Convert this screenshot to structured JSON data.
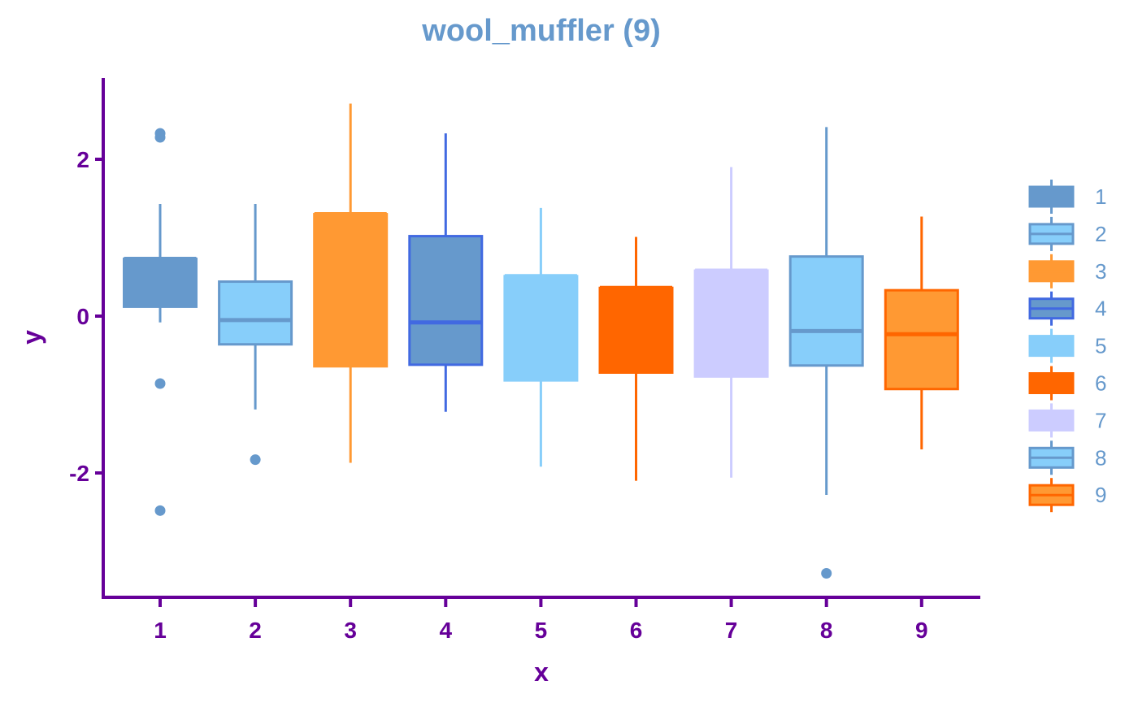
{
  "chart_data": {
    "type": "boxplot",
    "title": "wool_muffler (9)",
    "xlabel": "x",
    "ylabel": "y",
    "ylim": [
      -3.6,
      3.0
    ],
    "yticks": [
      -2,
      0,
      2
    ],
    "ytick_labels": [
      "-2",
      "0",
      "2"
    ],
    "grid": false,
    "legend_position": "right",
    "categories": [
      "1",
      "2",
      "3",
      "4",
      "5",
      "6",
      "7",
      "8",
      "9"
    ],
    "boxes": [
      {
        "name": "1",
        "whisker_low": -0.08,
        "q1": 0.12,
        "median": 0.73,
        "q3": 0.73,
        "whisker_high": 1.43,
        "outliers": [
          2.33,
          2.28,
          -0.86,
          -2.48
        ],
        "fill": "#6699cc",
        "stroke": "#6699cc",
        "median_color": "#6699cc"
      },
      {
        "name": "2",
        "whisker_low": -1.19,
        "q1": -0.36,
        "median": -0.05,
        "q3": 0.44,
        "whisker_high": 1.43,
        "outliers": [
          -1.83
        ],
        "fill": "#87cefa",
        "stroke": "#6699cc",
        "median_color": "#6699cc"
      },
      {
        "name": "3",
        "whisker_low": -1.87,
        "q1": -0.64,
        "median": 1.3,
        "q3": 1.3,
        "whisker_high": 2.71,
        "outliers": [],
        "fill": "#ff9933",
        "stroke": "#ff9933",
        "median_color": "#ff9933"
      },
      {
        "name": "4",
        "whisker_low": -1.22,
        "q1": -0.62,
        "median": -0.08,
        "q3": 1.02,
        "whisker_high": 2.33,
        "outliers": [],
        "fill": "#6699cc",
        "stroke": "#4169e1",
        "median_color": "#4169e1"
      },
      {
        "name": "5",
        "whisker_low": -1.92,
        "q1": -0.82,
        "median": 0.51,
        "q3": 0.51,
        "whisker_high": 1.38,
        "outliers": [],
        "fill": "#87cefa",
        "stroke": "#87cefa",
        "median_color": "#87cefa"
      },
      {
        "name": "6",
        "whisker_low": -2.1,
        "q1": -0.72,
        "median": 0.36,
        "q3": 0.36,
        "whisker_high": 1.01,
        "outliers": [],
        "fill": "#ff6600",
        "stroke": "#ff6600",
        "median_color": "#ff6600"
      },
      {
        "name": "7",
        "whisker_low": -2.06,
        "q1": -0.77,
        "median": 0.58,
        "q3": 0.58,
        "whisker_high": 1.9,
        "outliers": [],
        "fill": "#ccccff",
        "stroke": "#ccccff",
        "median_color": "#ccccff"
      },
      {
        "name": "8",
        "whisker_low": -2.28,
        "q1": -0.63,
        "median": -0.19,
        "q3": 0.76,
        "whisker_high": 2.41,
        "outliers": [
          -3.28
        ],
        "fill": "#87cefa",
        "stroke": "#6699cc",
        "median_color": "#6699cc"
      },
      {
        "name": "9",
        "whisker_low": -1.7,
        "q1": -0.93,
        "median": -0.23,
        "q3": 0.33,
        "whisker_high": 1.27,
        "outliers": [],
        "fill": "#ff9933",
        "stroke": "#ff6600",
        "median_color": "#ff6600"
      }
    ],
    "colors": {
      "title": "#6699cc",
      "axis": "#660099",
      "legend_text": "#6699cc"
    }
  }
}
